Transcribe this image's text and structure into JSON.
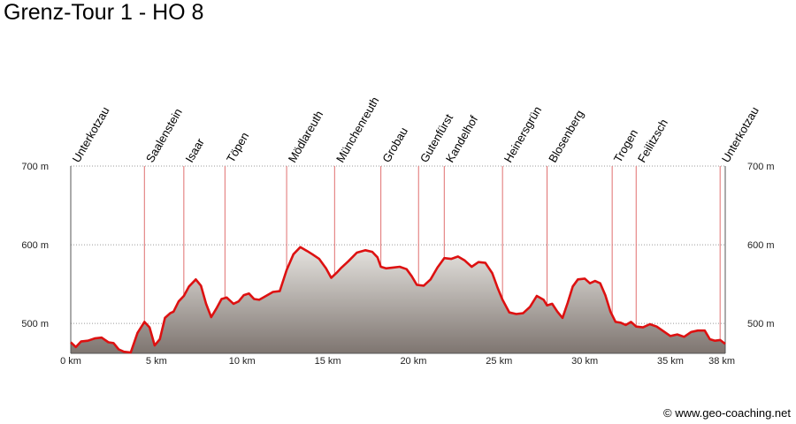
{
  "title": "Grenz-Tour 1 - HO 8",
  "credit": "© www.geo-coaching.net",
  "chart_data": {
    "type": "area",
    "xlabel": "",
    "ylabel": "",
    "xlim": [
      0,
      38.2
    ],
    "ylim": [
      462,
      700
    ],
    "x_ticks": [
      0,
      5,
      10,
      15,
      20,
      25,
      30,
      35,
      38
    ],
    "x_tick_labels": [
      "0 km",
      "5 km",
      "10 km",
      "15 km",
      "20 km",
      "25 km",
      "30 km",
      "35 km",
      "38 km"
    ],
    "y_ticks": [
      500,
      600,
      700
    ],
    "y_tick_labels": [
      "500 m",
      "600 m",
      "700 m"
    ],
    "grid": "horizontal dotted",
    "colors": {
      "line": "#dd1111",
      "fill_top": "#e6e4e0",
      "fill_bottom": "#7e7570",
      "marker": "#e07070"
    },
    "waypoints": [
      {
        "name": "Unterkotzau",
        "km": 0.0
      },
      {
        "name": "Saalenstein",
        "km": 4.3
      },
      {
        "name": "Isaar",
        "km": 6.6
      },
      {
        "name": "Töpen",
        "km": 9.0
      },
      {
        "name": "Mödlareuth",
        "km": 12.6
      },
      {
        "name": "Münchenreuth",
        "km": 15.4
      },
      {
        "name": "Grobau",
        "km": 18.1
      },
      {
        "name": "Gutenfürst",
        "km": 20.3
      },
      {
        "name": "Kandelhof",
        "km": 21.8
      },
      {
        "name": "Heinersgrün",
        "km": 25.2
      },
      {
        "name": "Blosenberg",
        "km": 27.8
      },
      {
        "name": "Trogen",
        "km": 31.6
      },
      {
        "name": "Feilitzsch",
        "km": 33.0
      },
      {
        "name": "Unterkotzau",
        "km": 37.9
      }
    ],
    "series": [
      {
        "x": [
          0,
          0.3,
          0.6,
          1.0,
          1.4,
          1.8,
          2.2,
          2.5,
          2.8,
          3.1,
          3.5,
          3.9,
          4.3,
          4.6,
          4.9,
          5.2,
          5.5,
          5.8,
          6.0,
          6.3,
          6.6,
          6.9,
          7.3,
          7.6,
          7.9,
          8.2,
          8.5,
          8.8,
          9.1,
          9.5,
          9.8,
          10.1,
          10.4,
          10.7,
          11.0,
          11.4,
          11.8,
          12.2,
          12.6,
          13.0,
          13.4,
          13.8,
          14.1,
          14.5,
          14.9,
          15.2,
          15.5,
          15.8,
          16.2,
          16.7,
          17.2,
          17.6,
          17.9,
          18.1,
          18.4,
          18.8,
          19.2,
          19.6,
          19.9,
          20.2,
          20.6,
          21.0,
          21.4,
          21.8,
          22.2,
          22.6,
          23.0,
          23.4,
          23.8,
          24.2,
          24.6,
          24.9,
          25.2,
          25.6,
          26.0,
          26.4,
          26.8,
          27.2,
          27.6,
          27.8,
          28.1,
          28.4,
          28.7,
          29.0,
          29.3,
          29.6,
          30.0,
          30.3,
          30.6,
          30.9,
          31.2,
          31.5,
          31.8,
          32.1,
          32.4,
          32.7,
          33.0,
          33.4,
          33.8,
          34.2,
          34.6,
          35.0,
          35.4,
          35.8,
          36.2,
          36.6,
          37.0,
          37.3,
          37.6,
          37.9,
          38.2
        ],
        "y": [
          476,
          470,
          477,
          478,
          481,
          482,
          476,
          475,
          467,
          464,
          463,
          488,
          502,
          495,
          472,
          480,
          507,
          513,
          515,
          528,
          535,
          547,
          556,
          548,
          525,
          508,
          519,
          531,
          533,
          525,
          528,
          536,
          538,
          531,
          530,
          535,
          540,
          541,
          568,
          588,
          597,
          592,
          588,
          582,
          570,
          558,
          564,
          571,
          579,
          590,
          593,
          591,
          584,
          572,
          570,
          571,
          572,
          569,
          560,
          549,
          548,
          556,
          571,
          583,
          582,
          585,
          580,
          572,
          578,
          577,
          564,
          546,
          530,
          514,
          512,
          513,
          521,
          535,
          530,
          523,
          525,
          515,
          507,
          526,
          547,
          556,
          557,
          551,
          554,
          551,
          536,
          515,
          502,
          501,
          498,
          502,
          496,
          495,
          499,
          496,
          490,
          484,
          486,
          483,
          489,
          491,
          491,
          480,
          478,
          479,
          474
        ]
      }
    ]
  }
}
